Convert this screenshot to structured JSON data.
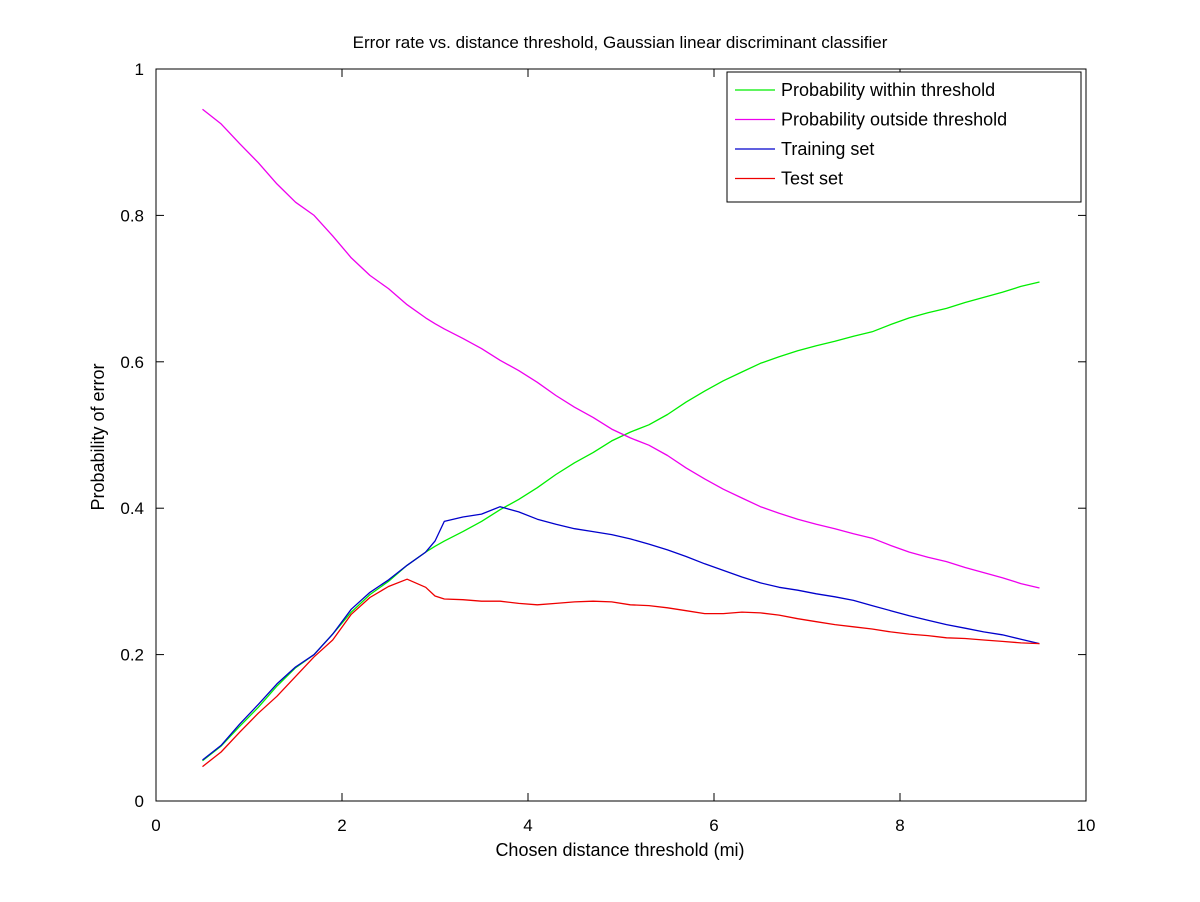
{
  "chart_data": {
    "type": "line",
    "title": "Error rate vs. distance threshold, Gaussian linear discriminant classifier",
    "xlabel": "Chosen distance threshold (mi)",
    "ylabel": "Probability of error",
    "xlim": [
      0,
      10
    ],
    "ylim": [
      0,
      1
    ],
    "xticks": [
      0,
      2,
      4,
      6,
      8,
      10
    ],
    "yticks": [
      0,
      0.2,
      0.4,
      0.6,
      0.8,
      1
    ],
    "xtick_labels": [
      "0",
      "2",
      "4",
      "6",
      "8",
      "10"
    ],
    "ytick_labels": [
      "0",
      "0.2",
      "0.4",
      "0.6",
      "0.8",
      "1"
    ],
    "grid": false,
    "legend_position": "top-right",
    "x": [
      0.5,
      0.7,
      0.9,
      1.1,
      1.3,
      1.5,
      1.7,
      1.9,
      2.1,
      2.3,
      2.5,
      2.7,
      2.9,
      3.0,
      3.1,
      3.3,
      3.5,
      3.7,
      3.9,
      4.1,
      4.3,
      4.5,
      4.7,
      4.9,
      5.1,
      5.3,
      5.5,
      5.7,
      5.9,
      6.1,
      6.3,
      6.5,
      6.7,
      6.9,
      7.1,
      7.3,
      7.5,
      7.7,
      7.9,
      8.1,
      8.3,
      8.5,
      8.7,
      8.9,
      9.1,
      9.3,
      9.5
    ],
    "series": [
      {
        "name": "Probability within threshold",
        "color": "#00ee00",
        "values": [
          0.055,
          0.075,
          0.102,
          0.128,
          0.157,
          0.182,
          0.2,
          0.228,
          0.258,
          0.282,
          0.3,
          0.322,
          0.34,
          0.348,
          0.355,
          0.368,
          0.382,
          0.398,
          0.412,
          0.428,
          0.446,
          0.462,
          0.476,
          0.492,
          0.504,
          0.514,
          0.528,
          0.545,
          0.56,
          0.574,
          0.586,
          0.598,
          0.607,
          0.615,
          0.622,
          0.628,
          0.635,
          0.641,
          0.651,
          0.66,
          0.667,
          0.673,
          0.681,
          0.688,
          0.695,
          0.703,
          0.709
        ]
      },
      {
        "name": "Probability outside threshold",
        "color": "#ee00ee",
        "values": [
          0.945,
          0.925,
          0.898,
          0.872,
          0.843,
          0.818,
          0.8,
          0.772,
          0.742,
          0.718,
          0.7,
          0.678,
          0.66,
          0.652,
          0.645,
          0.632,
          0.618,
          0.602,
          0.588,
          0.572,
          0.554,
          0.538,
          0.524,
          0.508,
          0.496,
          0.486,
          0.472,
          0.455,
          0.44,
          0.426,
          0.414,
          0.402,
          0.393,
          0.385,
          0.378,
          0.372,
          0.365,
          0.359,
          0.349,
          0.34,
          0.333,
          0.327,
          0.319,
          0.312,
          0.305,
          0.297,
          0.291
        ]
      },
      {
        "name": "Training set",
        "color": "#0000cc",
        "values": [
          0.056,
          0.076,
          0.105,
          0.132,
          0.16,
          0.183,
          0.2,
          0.228,
          0.262,
          0.285,
          0.302,
          0.322,
          0.34,
          0.355,
          0.382,
          0.388,
          0.392,
          0.402,
          0.395,
          0.385,
          0.378,
          0.372,
          0.368,
          0.364,
          0.358,
          0.351,
          0.343,
          0.334,
          0.324,
          0.315,
          0.306,
          0.298,
          0.292,
          0.288,
          0.283,
          0.279,
          0.274,
          0.267,
          0.26,
          0.253,
          0.247,
          0.241,
          0.236,
          0.231,
          0.227,
          0.221,
          0.215
        ]
      },
      {
        "name": "Test set",
        "color": "#ee0000",
        "values": [
          0.047,
          0.067,
          0.094,
          0.12,
          0.143,
          0.17,
          0.197,
          0.22,
          0.255,
          0.278,
          0.293,
          0.303,
          0.292,
          0.28,
          0.276,
          0.275,
          0.273,
          0.273,
          0.27,
          0.268,
          0.27,
          0.272,
          0.273,
          0.272,
          0.268,
          0.267,
          0.264,
          0.26,
          0.256,
          0.256,
          0.258,
          0.257,
          0.254,
          0.249,
          0.245,
          0.241,
          0.238,
          0.235,
          0.231,
          0.228,
          0.226,
          0.223,
          0.222,
          0.22,
          0.218,
          0.216,
          0.215
        ]
      }
    ]
  }
}
